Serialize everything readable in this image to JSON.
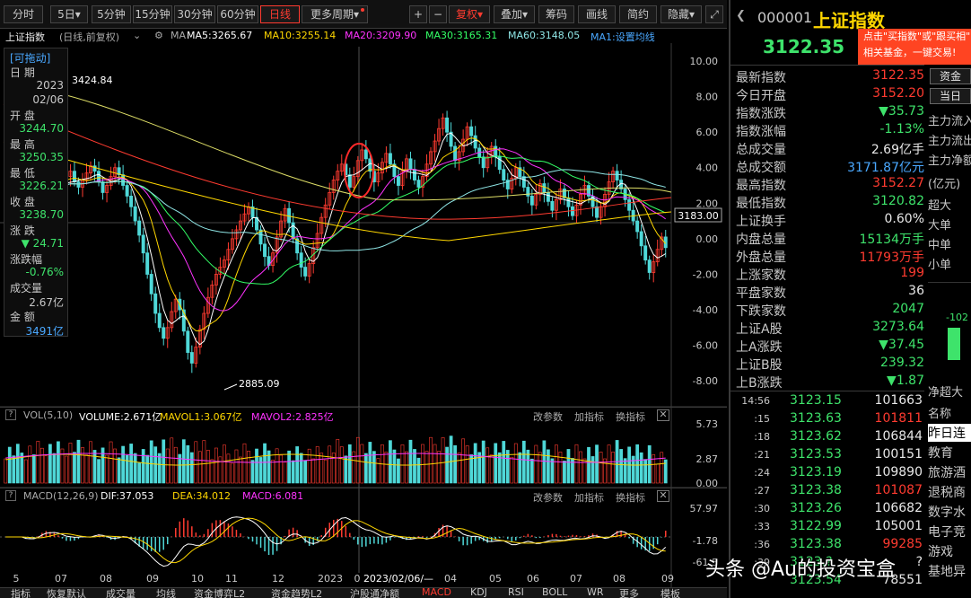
{
  "toolbar": {
    "periods": [
      "分时",
      "5日",
      "5分钟",
      "15分钟",
      "30分钟",
      "60分钟",
      "日线",
      "更多周期"
    ],
    "active_period": "日线",
    "tools": [
      "+",
      "−",
      "复权",
      "叠加",
      "筹码",
      "画线",
      "简约",
      "隐藏"
    ],
    "expand_icon": "expand-icon"
  },
  "info": {
    "title": "上证指数",
    "mode": "(日线,前复权)",
    "ma_label": "MA",
    "ma5": "MA5:3265.67",
    "ma10": "MA10:3255.14",
    "ma20": "MA20:3209.90",
    "ma30": "MA30:3165.31",
    "ma60": "MA60:3148.05",
    "ma1": "MA1:设置均线"
  },
  "ohlc": {
    "drag": "[可拖动]",
    "date_label": "日    期",
    "date_year": "2023",
    "date_md": "02/06",
    "open_label": "开    盘",
    "open": "3244.70",
    "high_label": "最    高",
    "high": "3250.35",
    "low_label": "最    低",
    "low": "3226.21",
    "close_label": "收    盘",
    "close": "3238.70",
    "chg_label": "涨    跌",
    "chg": "▼ 24.71",
    "pct_label": "涨跌幅",
    "pct": "-0.76%",
    "vol_label": "成交量",
    "vol": "2.67亿",
    "amt_label": "金    额",
    "amt": "3491亿"
  },
  "chart_data": {
    "type": "candlestick",
    "price_annotations": {
      "high_label": "3424.84",
      "low_label": "2885.09",
      "crosshair_value": "3183.00"
    },
    "y_ticks": [
      "10.00",
      "8.00",
      "6.00",
      "4.00",
      "2.00",
      "0.00",
      "-2.00",
      "-4.00",
      "-6.00",
      "-8.00"
    ],
    "x_ticks": [
      "5",
      "07",
      "08",
      "09",
      "10",
      "11",
      "12",
      "2023",
      "0",
      "2023/02/06/—",
      "04",
      "05",
      "06",
      "07",
      "08",
      "09"
    ],
    "closes": [
      3.5,
      3.0,
      2.7,
      2.2,
      1.8,
      2.5,
      3.1,
      2.8,
      3.3,
      3.9,
      4.2,
      3.6,
      3.0,
      2.6,
      3.0,
      3.5,
      3.8,
      3.2,
      2.9,
      3.3,
      3.7,
      4.1,
      3.8,
      3.2,
      2.6,
      3.0,
      3.5,
      4.0,
      3.6,
      3.0,
      2.4,
      1.8,
      1.0,
      0.2,
      -0.8,
      -2.0,
      -3.1,
      -4.2,
      -5.0,
      -5.6,
      -5.0,
      -4.1,
      -3.4,
      -4.0,
      -5.2,
      -6.4,
      -7.0,
      -6.1,
      -5.1,
      -4.2,
      -3.3,
      -2.6,
      -2.0,
      -1.6,
      -1.2,
      -0.6,
      0.0,
      0.5,
      1.0,
      1.4,
      1.8,
      1.2,
      0.5,
      -0.3,
      -1.0,
      -1.5,
      -0.8,
      0.1,
      1.0,
      1.7,
      0.9,
      0.0,
      -0.8,
      -1.6,
      -2.1,
      -1.4,
      -0.5,
      0.3,
      1.2,
      1.9,
      2.6,
      3.3,
      3.8,
      4.2,
      3.6,
      2.9,
      3.5,
      4.4,
      5.0,
      4.5,
      3.8,
      3.2,
      3.7,
      4.3,
      4.8,
      4.2,
      3.5,
      3.0,
      3.8,
      4.5,
      3.9,
      3.3,
      2.9,
      3.5,
      4.2,
      4.9,
      5.5,
      6.2,
      6.8,
      6.0,
      5.2,
      4.4,
      4.9,
      5.6,
      6.3,
      5.8,
      5.1,
      4.6,
      4.0,
      4.6,
      5.2,
      4.6,
      3.9,
      3.3,
      2.8,
      3.4,
      4.0,
      3.5,
      2.9,
      2.4,
      1.9,
      2.5,
      3.1,
      2.6,
      2.1,
      1.6,
      2.2,
      2.8,
      2.3,
      1.8,
      1.3,
      1.9,
      2.5,
      3.0,
      2.4,
      1.8,
      1.2,
      1.8,
      2.5,
      3.2,
      3.8,
      3.3,
      2.8,
      2.2,
      1.6,
      1.0,
      0.4,
      -0.4,
      -1.2,
      -1.9,
      -1.3,
      -0.6,
      0.1,
      -0.5
    ],
    "series": [
      {
        "name": "MA5",
        "color": "#ffffff"
      },
      {
        "name": "MA10",
        "color": "#ffd700"
      },
      {
        "name": "MA20",
        "color": "#ff33ff"
      },
      {
        "name": "MA30",
        "color": "#33ff66"
      },
      {
        "name": "MA60",
        "color": "#8fe6e6"
      }
    ],
    "volume": {
      "y_ticks": [
        "5.73",
        "2.87",
        "0.00"
      ]
    },
    "macd": {
      "y_ticks": [
        "57.97",
        "-1.78",
        "-61.5"
      ]
    }
  },
  "vol_panel": {
    "name": "VOL(5,10)",
    "volume": "VOLUME:2.671亿",
    "mavol1": "MAVOL1:3.067亿",
    "mavol2": "MAVOL2:2.825亿",
    "links": [
      "改参数",
      "加指标",
      "换指标"
    ]
  },
  "macd_panel": {
    "name": "MACD(12,26,9)",
    "dif": "DIF:37.053",
    "dea": "DEA:34.012",
    "macd": "MACD:6.081",
    "links": [
      "改参数",
      "加指标",
      "换指标"
    ]
  },
  "bottom_tabs": [
    "指标",
    "恢复默认",
    "成交量",
    "均线",
    "资金博弈L2",
    "资金趋势L2",
    "沪股通净额",
    "MACD",
    "KDJ",
    "RSI",
    "BOLL",
    "WR",
    "更多",
    "模板"
  ],
  "bottom_tab_active": "MACD",
  "right": {
    "code": "000001",
    "name": "上证指数",
    "price": "3122.35",
    "ad_line1": "点击\"买指数\"或\"跟买相\"",
    "ad_line2": "相关基金，一键交易!",
    "buttons": [
      "资金",
      "当日"
    ],
    "rows": [
      {
        "k": "最新指数",
        "v": "3122.35",
        "c": "red"
      },
      {
        "k": "今日开盘",
        "v": "3152.20",
        "c": "red"
      },
      {
        "k": "指数涨跌",
        "v": "▼35.73",
        "c": "grn"
      },
      {
        "k": "指数涨幅",
        "v": "-1.13%",
        "c": "grn"
      },
      {
        "k": "总成交量",
        "v": "2.69亿手",
        "c": "wht"
      },
      {
        "k": "总成交额",
        "v": "3171.87亿元",
        "c": "blu"
      },
      {
        "k": "最高指数",
        "v": "3152.27",
        "c": "red"
      },
      {
        "k": "最低指数",
        "v": "3120.82",
        "c": "grn"
      },
      {
        "k": "上证换手",
        "v": "0.60%",
        "c": "wht"
      },
      {
        "k": "内盘总量",
        "v": "15134万手",
        "c": "grn"
      },
      {
        "k": "外盘总量",
        "v": "11793万手",
        "c": "red"
      },
      {
        "k": "上涨家数",
        "v": "199",
        "c": "red"
      },
      {
        "k": "平盘家数",
        "v": "36",
        "c": "wht"
      },
      {
        "k": "下跌家数",
        "v": "2047",
        "c": "grn"
      },
      {
        "k": "上证A股",
        "v": "3273.64",
        "c": "grn"
      },
      {
        "k": "上A涨跌",
        "v": "▼37.45",
        "c": "grn"
      },
      {
        "k": "上证B股",
        "v": "239.32",
        "c": "grn"
      },
      {
        "k": "上B涨跌",
        "v": "▼1.87",
        "c": "grn"
      }
    ],
    "ticks": [
      {
        "t": "14:56",
        "p": "3123.15",
        "q": "101663",
        "c": "wht"
      },
      {
        "t": ":15",
        "p": "3123.63",
        "q": "101811",
        "c": "red"
      },
      {
        "t": ":18",
        "p": "3123.62",
        "q": "106844",
        "c": "wht"
      },
      {
        "t": ":21",
        "p": "3123.53",
        "q": "100151",
        "c": "wht"
      },
      {
        "t": ":24",
        "p": "3123.19",
        "q": "109890",
        "c": "wht"
      },
      {
        "t": ":27",
        "p": "3123.38",
        "q": "101087",
        "c": "red"
      },
      {
        "t": ":30",
        "p": "3123.26",
        "q": "106682",
        "c": "wht"
      },
      {
        "t": ":33",
        "p": "3122.99",
        "q": "105001",
        "c": "wht"
      },
      {
        "t": ":36",
        "p": "3123.38",
        "q": "99285",
        "c": "red"
      },
      {
        "t": ":39",
        "p": "3123.?",
        "q": "?",
        "c": "wht"
      },
      {
        "t": "",
        "p": "3123.54",
        "q": "78551",
        "c": "wht"
      }
    ],
    "side_top": [
      "主力流入",
      "主力流出",
      "主力净额",
      "(亿元)",
      "超大",
      "大单",
      "中单",
      "小单"
    ],
    "side_bar_value": "-102",
    "side_bottom": [
      "净超大",
      "名称",
      "昨日连",
      "教育",
      "旅游酒",
      "退税商",
      "数字水",
      "电子竞",
      "游戏",
      "基地异"
    ]
  },
  "watermark": "头条 @Au的投资宝盒"
}
